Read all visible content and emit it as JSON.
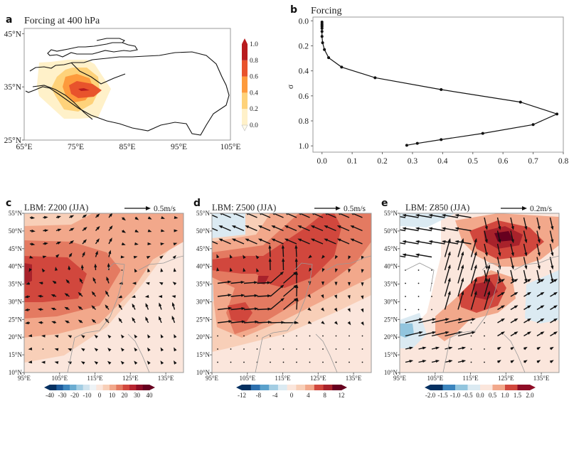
{
  "figure": {
    "panels": {
      "a": {
        "label": "a",
        "title": "Forcing at 400 hPa"
      },
      "b": {
        "label": "b",
        "title": "Forcing"
      },
      "c": {
        "label": "c",
        "title": "LBM: Z200 (JJA)",
        "ref_vector": "0.5m/s"
      },
      "d": {
        "label": "d",
        "title": "LBM: Z500 (JJA)",
        "ref_vector": "0.5m/s"
      },
      "e": {
        "label": "e",
        "title": "LBM: Z850 (JJA)",
        "ref_vector": "0.2m/s"
      }
    }
  },
  "chart_data": [
    {
      "id": "a",
      "type": "heatmap",
      "title": "Forcing at 400 hPa",
      "xlabel": "",
      "ylabel": "",
      "x_ticks": [
        "65°E",
        "75°E",
        "85°E",
        "95°E",
        "105°E"
      ],
      "y_ticks": [
        "25°N",
        "35°N",
        "45°N"
      ],
      "xlim": [
        65,
        105
      ],
      "ylim": [
        25,
        46
      ],
      "forcing_center": {
        "lon": 76,
        "lat": 35
      },
      "forcing_max": 1.0,
      "colorbar": {
        "ticks": [
          "0.0",
          "0.2",
          "0.4",
          "0.6",
          "0.8",
          "1.0"
        ],
        "levels": [
          0.0,
          0.2,
          0.4,
          0.6,
          0.8,
          1.0
        ],
        "colors": [
          "#fff1c9",
          "#fed27a",
          "#fd9a3c",
          "#e8532c",
          "#b81b1e"
        ],
        "orientation": "vertical",
        "placement": "right"
      },
      "outline": "Tibetan Plateau boundary"
    },
    {
      "id": "b",
      "type": "line",
      "title": "Forcing",
      "xlabel": "",
      "ylabel": "σ",
      "xlim": [
        -0.03,
        0.8
      ],
      "ylim": [
        1.05,
        -0.03
      ],
      "x_ticks": [
        "0.0",
        "0.1",
        "0.2",
        "0.3",
        "0.4",
        "0.5",
        "0.6",
        "0.7",
        "0.8"
      ],
      "y_ticks": [
        "0.0",
        "0.2",
        "0.4",
        "0.6",
        "0.8",
        "1.0"
      ],
      "series": [
        {
          "name": "Forcing profile",
          "x": [
            0.0,
            0.0,
            0.0,
            0.0,
            0.0,
            0.0,
            0.0,
            0.002,
            0.008,
            0.022,
            0.065,
            0.176,
            0.395,
            0.658,
            0.779,
            0.7,
            0.533,
            0.395,
            0.316,
            0.281
          ],
          "y": [
            0.01,
            0.025,
            0.035,
            0.045,
            0.06,
            0.085,
            0.125,
            0.175,
            0.23,
            0.295,
            0.37,
            0.455,
            0.55,
            0.65,
            0.745,
            0.83,
            0.9,
            0.95,
            0.98,
            0.995
          ]
        }
      ],
      "grid": false
    },
    {
      "id": "c",
      "type": "heatmap",
      "title": "LBM: Z200 (JJA)",
      "reference_vector": "0.5m/s",
      "x_ticks": [
        "95°E",
        "105°E",
        "115°E",
        "125°E",
        "135°E"
      ],
      "y_ticks": [
        "10°N",
        "15°N",
        "20°N",
        "25°N",
        "30°N",
        "35°N",
        "40°N",
        "45°N",
        "50°N",
        "55°N"
      ],
      "xlim": [
        95,
        140
      ],
      "ylim": [
        10,
        55
      ],
      "max_center": {
        "lon": 96,
        "lat": 37,
        "value": 35
      },
      "colorbar": {
        "ticks": [
          "-40",
          "-30",
          "-20",
          "-10",
          "0",
          "10",
          "20",
          "30",
          "40"
        ],
        "range": [
          -40,
          40
        ],
        "step": 5,
        "orientation": "horizontal",
        "placement": "bottom"
      }
    },
    {
      "id": "d",
      "type": "heatmap",
      "title": "LBM: Z500 (JJA)",
      "reference_vector": "0.5m/s",
      "x_ticks": [
        "95°E",
        "105°E",
        "115°E",
        "125°E",
        "135°E"
      ],
      "y_ticks": [
        "10°N",
        "15°N",
        "20°N",
        "25°N",
        "30°N",
        "35°N",
        "40°N",
        "45°N",
        "50°N",
        "55°N"
      ],
      "xlim": [
        95,
        140
      ],
      "ylim": [
        10,
        55
      ],
      "max_centers": [
        {
          "lon": 121,
          "lat": 37,
          "value": 11
        },
        {
          "lon": 106,
          "lat": 26,
          "value": 9
        }
      ],
      "colorbar": {
        "ticks": [
          "-12",
          "-8",
          "-4",
          "0",
          "4",
          "8",
          "12"
        ],
        "range": [
          -12,
          12
        ],
        "step": 2,
        "orientation": "horizontal",
        "placement": "bottom"
      }
    },
    {
      "id": "e",
      "type": "heatmap",
      "title": "LBM: Z850 (JJA)",
      "reference_vector": "0.2m/s",
      "x_ticks": [
        "95°E",
        "105°E",
        "115°E",
        "125°E",
        "135°E"
      ],
      "y_ticks": [
        "10°N",
        "15°N",
        "20°N",
        "25°N",
        "30°N",
        "35°N",
        "40°N",
        "45°N",
        "50°N",
        "55°N"
      ],
      "xlim": [
        95,
        140
      ],
      "ylim": [
        10,
        55
      ],
      "max_centers": [
        {
          "lon": 125,
          "lat": 48,
          "value": 2.0
        },
        {
          "lon": 120,
          "lat": 33,
          "value": 1.8
        }
      ],
      "colorbar": {
        "ticks": [
          "-2.0",
          "-1.5",
          "-1.0",
          "-0.5",
          "0.0",
          "0.5",
          "1.0",
          "1.5",
          "2.0"
        ],
        "range": [
          -2,
          2
        ],
        "step": 0.5,
        "orientation": "horizontal",
        "placement": "bottom"
      }
    }
  ]
}
